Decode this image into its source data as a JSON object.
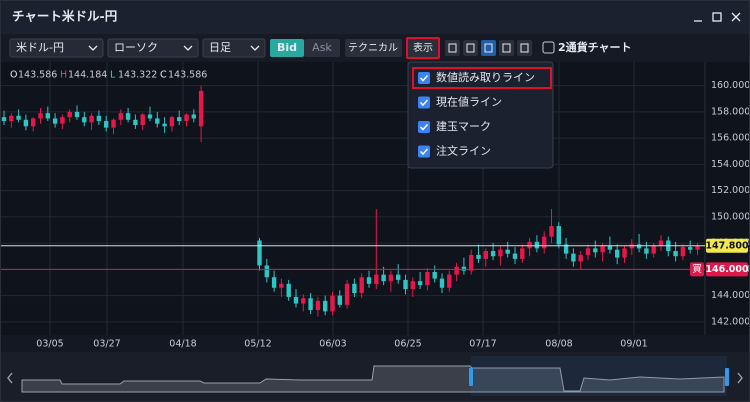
{
  "window": {
    "title": "チャート",
    "subtitle": "米ドル-円"
  },
  "toolbar": {
    "pair": "米ドル-円",
    "chart_type": "ローソク",
    "period": "日足",
    "bid": "Bid",
    "ask": "Ask",
    "technical": "テクニカル",
    "display": "表示",
    "dual_chart": "2通貨チャート"
  },
  "display_menu": {
    "items": [
      {
        "label": "数値読み取りライン",
        "checked": true
      },
      {
        "label": "現在値ライン",
        "checked": true
      },
      {
        "label": "建玉マーク",
        "checked": true
      },
      {
        "label": "注文ライン",
        "checked": true
      }
    ]
  },
  "ohlc": [
    {
      "key": "O",
      "value": "143.586",
      "color": "#e6e9ef"
    },
    {
      "key": "H",
      "value": "144.184",
      "color": "#ff3b5c"
    },
    {
      "key": "L",
      "value": "143.322",
      "color": "#3ad1d1"
    },
    {
      "key": "C",
      "value": "143.586",
      "color": "#e6e9ef"
    }
  ],
  "chart": {
    "type": "candlestick",
    "up_color": "#e8174b",
    "down_color": "#2ec5c5",
    "grid": true,
    "ylim": [
      141.0,
      161.8
    ],
    "yticks": [
      {
        "value": 142,
        "label": "142.000"
      },
      {
        "value": 144,
        "label": "144.000"
      },
      {
        "value": 146,
        "label": "146.000"
      },
      {
        "value": 148,
        "label": "148.000"
      },
      {
        "value": 150,
        "label": "150.000"
      },
      {
        "value": 152,
        "label": "152.000"
      },
      {
        "value": 154,
        "label": "154.000"
      },
      {
        "value": 156,
        "label": "156.000"
      },
      {
        "value": 158,
        "label": "158.000"
      },
      {
        "value": 160,
        "label": "160.000"
      }
    ],
    "dates": [
      "03/05",
      "03/27",
      "04/18",
      "05/12",
      "06/03",
      "06/25",
      "07/17",
      "08/08",
      "09/01"
    ],
    "current_price": {
      "value": 147.8,
      "label": "147.800"
    },
    "position_line": {
      "value": 146.0,
      "label": "146.000",
      "side": "買"
    },
    "candles": [
      [
        157.6,
        158.1,
        157.0,
        157.3
      ],
      [
        157.3,
        157.9,
        156.8,
        157.7
      ],
      [
        157.7,
        158.2,
        157.2,
        157.4
      ],
      [
        157.4,
        157.8,
        156.6,
        156.9
      ],
      [
        156.9,
        157.6,
        156.5,
        157.5
      ],
      [
        157.5,
        158.3,
        157.1,
        157.9
      ],
      [
        157.9,
        158.4,
        157.3,
        157.5
      ],
      [
        157.5,
        157.9,
        156.8,
        157.1
      ],
      [
        157.1,
        157.8,
        156.7,
        157.6
      ],
      [
        157.6,
        158.2,
        157.2,
        158.0
      ],
      [
        158.0,
        158.5,
        157.4,
        157.6
      ],
      [
        157.6,
        158.0,
        156.9,
        157.2
      ],
      [
        157.2,
        157.9,
        156.6,
        157.7
      ],
      [
        157.7,
        158.1,
        157.0,
        157.3
      ],
      [
        157.3,
        157.7,
        156.5,
        156.8
      ],
      [
        156.8,
        157.5,
        156.3,
        157.4
      ],
      [
        157.4,
        158.2,
        157.0,
        157.9
      ],
      [
        157.9,
        158.3,
        157.2,
        157.4
      ],
      [
        157.4,
        157.8,
        156.7,
        157.0
      ],
      [
        157.0,
        157.9,
        156.6,
        157.8
      ],
      [
        157.8,
        158.4,
        157.3,
        157.5
      ],
      [
        157.5,
        158.0,
        156.8,
        157.1
      ],
      [
        157.1,
        157.6,
        156.4,
        156.9
      ],
      [
        156.9,
        157.7,
        156.5,
        157.6
      ],
      [
        157.6,
        158.1,
        157.0,
        157.3
      ],
      [
        157.3,
        157.9,
        156.9,
        157.8
      ],
      [
        157.8,
        158.2,
        157.2,
        157.5
      ],
      [
        156.9,
        160.0,
        155.7,
        159.6
      ],
      null,
      null,
      null,
      null,
      null,
      null,
      null,
      [
        148.2,
        148.4,
        145.9,
        146.3
      ],
      [
        146.3,
        146.8,
        145.0,
        145.4
      ],
      [
        145.4,
        145.9,
        144.3,
        144.6
      ],
      [
        144.6,
        145.3,
        143.9,
        144.9
      ],
      [
        144.9,
        145.2,
        143.6,
        143.9
      ],
      [
        143.9,
        144.5,
        143.1,
        143.4
      ],
      [
        143.4,
        144.1,
        142.8,
        143.8
      ],
      [
        143.8,
        144.2,
        142.6,
        142.9
      ],
      [
        142.9,
        143.9,
        142.4,
        143.6
      ],
      [
        143.6,
        144.0,
        142.5,
        142.8
      ],
      [
        142.8,
        144.3,
        142.5,
        144.0
      ],
      [
        144.0,
        144.4,
        143.1,
        143.3
      ],
      [
        143.3,
        145.2,
        143.0,
        144.9
      ],
      [
        144.9,
        145.3,
        143.9,
        144.2
      ],
      [
        144.2,
        145.7,
        143.8,
        145.4
      ],
      [
        145.4,
        145.9,
        144.6,
        144.9
      ],
      [
        144.9,
        150.6,
        144.5,
        145.6
      ],
      [
        145.6,
        146.2,
        144.8,
        145.1
      ],
      [
        145.1,
        145.9,
        144.3,
        145.6
      ],
      [
        145.6,
        146.4,
        144.9,
        145.2
      ],
      [
        145.2,
        145.6,
        144.1,
        144.5
      ],
      [
        144.5,
        145.4,
        143.9,
        145.1
      ],
      [
        145.1,
        145.8,
        144.5,
        144.8
      ],
      [
        144.8,
        146.1,
        144.4,
        145.8
      ],
      [
        145.8,
        146.3,
        145.0,
        145.3
      ],
      [
        145.3,
        145.7,
        144.2,
        144.6
      ],
      [
        144.6,
        145.9,
        144.3,
        145.6
      ],
      [
        145.6,
        146.5,
        145.1,
        146.2
      ],
      [
        146.2,
        146.9,
        145.6,
        145.9
      ],
      [
        145.9,
        147.5,
        145.6,
        147.1
      ],
      [
        147.1,
        147.9,
        146.5,
        146.8
      ],
      [
        146.8,
        147.6,
        146.2,
        147.4
      ],
      [
        147.4,
        148.0,
        146.7,
        147.0
      ],
      [
        147.0,
        147.8,
        146.3,
        147.5
      ],
      [
        147.5,
        148.1,
        146.9,
        147.2
      ],
      [
        147.2,
        147.7,
        146.4,
        146.8
      ],
      [
        146.8,
        147.9,
        146.5,
        147.6
      ],
      [
        147.6,
        148.4,
        147.0,
        148.1
      ],
      [
        148.1,
        148.6,
        147.3,
        147.6
      ],
      [
        147.6,
        148.9,
        147.2,
        148.5
      ],
      [
        148.5,
        150.6,
        148.0,
        149.3
      ],
      [
        149.3,
        149.6,
        147.6,
        147.9
      ],
      [
        147.9,
        148.4,
        146.8,
        147.2
      ],
      [
        147.2,
        147.6,
        146.2,
        146.6
      ],
      [
        146.6,
        147.4,
        146.0,
        147.1
      ],
      [
        147.1,
        147.9,
        146.7,
        147.6
      ],
      [
        147.6,
        148.2,
        146.9,
        147.3
      ],
      [
        147.3,
        148.0,
        146.6,
        147.8
      ],
      [
        147.8,
        148.5,
        147.2,
        147.5
      ],
      [
        147.5,
        147.9,
        146.4,
        146.9
      ],
      [
        146.9,
        147.8,
        146.5,
        147.6
      ],
      [
        147.6,
        148.3,
        147.1,
        147.9
      ],
      [
        147.9,
        148.7,
        147.3,
        147.6
      ],
      [
        147.6,
        148.1,
        146.8,
        147.2
      ],
      [
        147.2,
        148.0,
        146.9,
        147.8
      ],
      [
        147.8,
        148.6,
        147.4,
        148.2
      ],
      [
        148.2,
        148.5,
        147.0,
        147.4
      ],
      [
        147.4,
        148.1,
        146.6,
        147.0
      ],
      [
        147.0,
        147.9,
        146.7,
        147.7
      ],
      [
        147.7,
        148.2,
        147.2,
        147.5
      ],
      [
        147.5,
        148.0,
        147.1,
        147.8
      ]
    ]
  }
}
